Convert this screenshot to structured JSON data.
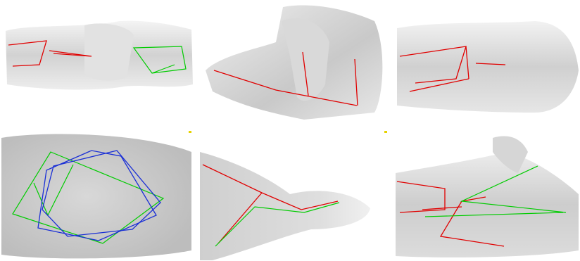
{
  "figure": {
    "layout": "2x3 grid",
    "panels": [
      {
        "name": "panel-1",
        "pose_lines": [
          "red",
          "green"
        ]
      },
      {
        "name": "panel-2",
        "pose_lines": [
          "red"
        ]
      },
      {
        "name": "panel-3",
        "pose_lines": [
          "red"
        ]
      },
      {
        "name": "panel-4",
        "pose_lines": [
          "green",
          "blue"
        ]
      },
      {
        "name": "panel-5",
        "pose_lines": [
          "red",
          "green"
        ]
      },
      {
        "name": "panel-6",
        "pose_lines": [
          "red",
          "green"
        ]
      }
    ],
    "colors": {
      "background": "#ffffff",
      "statue": "#cfcfcf",
      "red": "#e00000",
      "green": "#00cc00",
      "blue": "#1a2fd6",
      "marker": "#e6d200"
    }
  }
}
